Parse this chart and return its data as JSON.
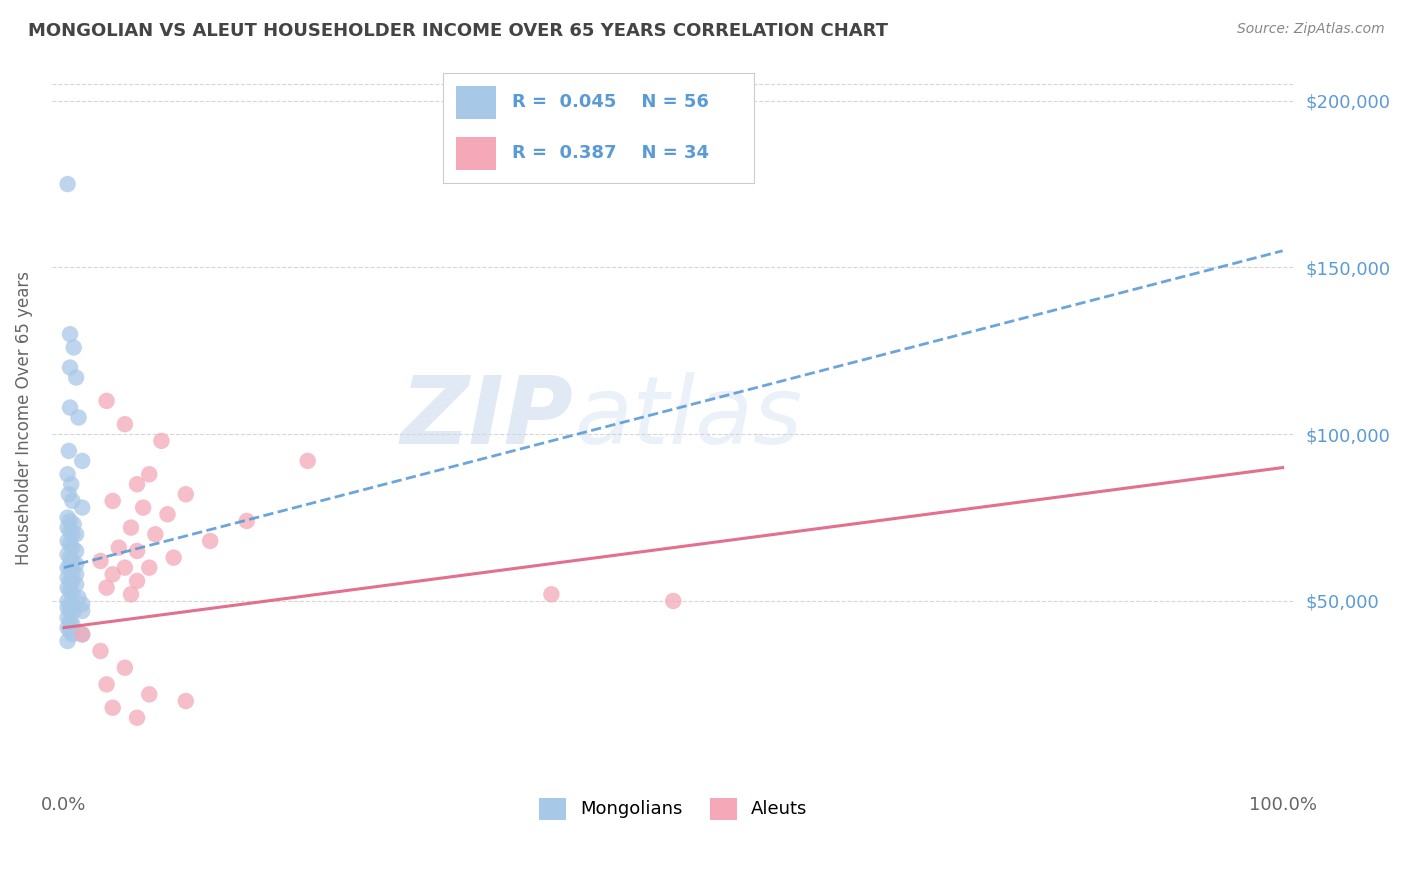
{
  "title": "MONGOLIAN VS ALEUT HOUSEHOLDER INCOME OVER 65 YEARS CORRELATION CHART",
  "source": "Source: ZipAtlas.com",
  "ylabel": "Householder Income Over 65 years",
  "watermark_zip": "ZIP",
  "watermark_atlas": "atlas",
  "legend_labels": [
    "Mongolians",
    "Aleuts"
  ],
  "mongolian_R": "0.045",
  "mongolian_N": "56",
  "aleut_R": "0.387",
  "aleut_N": "34",
  "mongolian_color": "#a8c8e8",
  "aleut_color": "#f4a8b8",
  "mongolian_line_color": "#5b9bd5",
  "aleut_line_color": "#e06080",
  "mongolian_trendline": [
    [
      0,
      60000
    ],
    [
      100,
      155000
    ]
  ],
  "aleut_trendline": [
    [
      0,
      42000
    ],
    [
      100,
      90000
    ]
  ],
  "mongolian_scatter": [
    [
      0.3,
      175000
    ],
    [
      0.5,
      130000
    ],
    [
      0.8,
      126000
    ],
    [
      0.5,
      120000
    ],
    [
      1.0,
      117000
    ],
    [
      0.5,
      108000
    ],
    [
      1.2,
      105000
    ],
    [
      0.4,
      95000
    ],
    [
      1.5,
      92000
    ],
    [
      0.3,
      88000
    ],
    [
      0.6,
      85000
    ],
    [
      0.4,
      82000
    ],
    [
      0.7,
      80000
    ],
    [
      1.5,
      78000
    ],
    [
      0.3,
      75000
    ],
    [
      0.5,
      74000
    ],
    [
      0.8,
      73000
    ],
    [
      0.3,
      72000
    ],
    [
      0.5,
      71000
    ],
    [
      0.7,
      70000
    ],
    [
      1.0,
      70000
    ],
    [
      0.3,
      68000
    ],
    [
      0.5,
      67000
    ],
    [
      0.7,
      66000
    ],
    [
      1.0,
      65000
    ],
    [
      0.3,
      64000
    ],
    [
      0.5,
      63000
    ],
    [
      0.7,
      62000
    ],
    [
      1.0,
      61000
    ],
    [
      0.3,
      60000
    ],
    [
      0.5,
      60000
    ],
    [
      0.7,
      59000
    ],
    [
      1.0,
      58000
    ],
    [
      0.3,
      57000
    ],
    [
      0.5,
      56000
    ],
    [
      0.7,
      56000
    ],
    [
      1.0,
      55000
    ],
    [
      0.3,
      54000
    ],
    [
      0.5,
      53000
    ],
    [
      0.7,
      52000
    ],
    [
      1.2,
      51000
    ],
    [
      0.3,
      50000
    ],
    [
      0.5,
      49000
    ],
    [
      1.5,
      49000
    ],
    [
      0.3,
      48000
    ],
    [
      0.5,
      47000
    ],
    [
      0.8,
      47000
    ],
    [
      1.5,
      47000
    ],
    [
      0.3,
      45000
    ],
    [
      0.5,
      44000
    ],
    [
      0.7,
      43000
    ],
    [
      0.3,
      42000
    ],
    [
      0.5,
      41000
    ],
    [
      0.7,
      40000
    ],
    [
      1.5,
      40000
    ],
    [
      0.3,
      38000
    ]
  ],
  "aleut_scatter": [
    [
      3.5,
      110000
    ],
    [
      5.0,
      103000
    ],
    [
      8.0,
      98000
    ],
    [
      20.0,
      92000
    ],
    [
      7.0,
      88000
    ],
    [
      6.0,
      85000
    ],
    [
      10.0,
      82000
    ],
    [
      4.0,
      80000
    ],
    [
      6.5,
      78000
    ],
    [
      8.5,
      76000
    ],
    [
      15.0,
      74000
    ],
    [
      5.5,
      72000
    ],
    [
      7.5,
      70000
    ],
    [
      12.0,
      68000
    ],
    [
      4.5,
      66000
    ],
    [
      6.0,
      65000
    ],
    [
      9.0,
      63000
    ],
    [
      3.0,
      62000
    ],
    [
      5.0,
      60000
    ],
    [
      7.0,
      60000
    ],
    [
      4.0,
      58000
    ],
    [
      6.0,
      56000
    ],
    [
      3.5,
      54000
    ],
    [
      5.5,
      52000
    ],
    [
      40.0,
      52000
    ],
    [
      50.0,
      50000
    ],
    [
      1.5,
      40000
    ],
    [
      3.0,
      35000
    ],
    [
      5.0,
      30000
    ],
    [
      3.5,
      25000
    ],
    [
      7.0,
      22000
    ],
    [
      10.0,
      20000
    ],
    [
      4.0,
      18000
    ],
    [
      6.0,
      15000
    ]
  ],
  "yticks": [
    50000,
    100000,
    150000,
    200000
  ],
  "ytick_labels": [
    "$50,000",
    "$100,000",
    "$150,000",
    "$200,000"
  ],
  "ymin": -5000,
  "ymax": 215000,
  "xmin": -1,
  "xmax": 101,
  "background_color": "#ffffff",
  "grid_color": "#cccccc",
  "title_color": "#444444",
  "source_color": "#888888"
}
